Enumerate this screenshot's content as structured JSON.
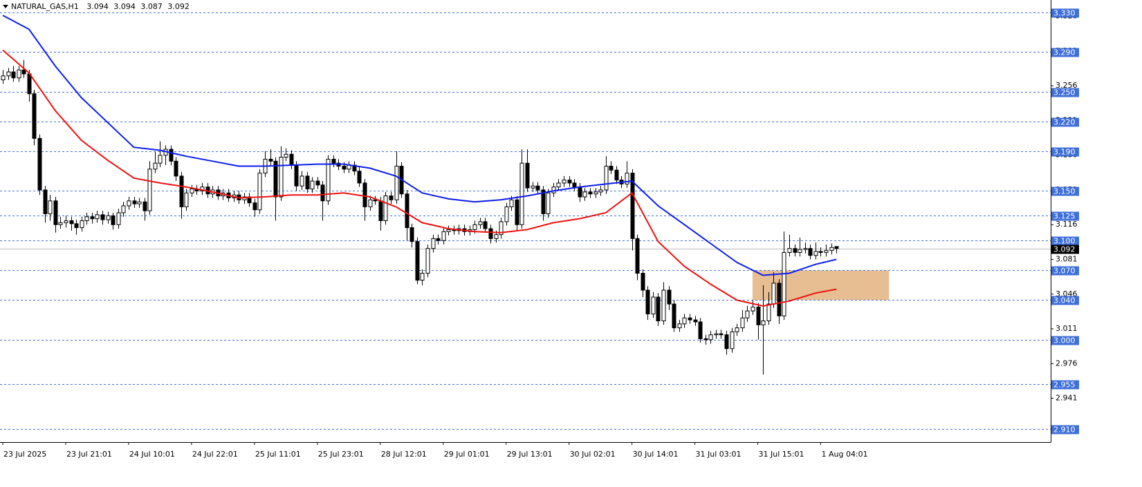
{
  "chart_data": {
    "type": "candlestick",
    "title": "NATURAL_GAS,H1",
    "up_color": "#ffffff",
    "down_color": "#000000",
    "candles": [
      [
        3.262,
        3.272,
        3.258,
        3.266
      ],
      [
        3.266,
        3.274,
        3.262,
        3.27
      ],
      [
        3.27,
        3.276,
        3.26,
        3.264
      ],
      [
        3.264,
        3.276,
        3.26,
        3.272
      ],
      [
        3.272,
        3.282,
        3.264,
        3.268
      ],
      [
        3.268,
        3.272,
        3.24,
        3.248
      ],
      [
        3.248,
        3.252,
        3.196,
        3.203
      ],
      [
        3.203,
        3.207,
        3.146,
        3.151
      ],
      [
        3.151,
        3.155,
        3.118,
        3.127
      ],
      [
        3.127,
        3.146,
        3.12,
        3.14
      ],
      [
        3.14,
        3.144,
        3.108,
        3.116
      ],
      [
        3.116,
        3.124,
        3.112,
        3.118
      ],
      [
        3.118,
        3.125,
        3.113,
        3.12
      ],
      [
        3.12,
        3.124,
        3.11,
        3.117
      ],
      [
        3.117,
        3.121,
        3.106,
        3.113
      ],
      [
        3.113,
        3.124,
        3.109,
        3.12
      ],
      [
        3.12,
        3.128,
        3.116,
        3.124
      ],
      [
        3.124,
        3.128,
        3.117,
        3.122
      ],
      [
        3.122,
        3.13,
        3.118,
        3.126
      ],
      [
        3.126,
        3.13,
        3.116,
        3.121
      ],
      [
        3.121,
        3.129,
        3.117,
        3.125
      ],
      [
        3.125,
        3.128,
        3.111,
        3.116
      ],
      [
        3.116,
        3.132,
        3.112,
        3.128
      ],
      [
        3.128,
        3.139,
        3.124,
        3.135
      ],
      [
        3.135,
        3.144,
        3.131,
        3.14
      ],
      [
        3.14,
        3.144,
        3.133,
        3.137
      ],
      [
        3.137,
        3.143,
        3.133,
        3.139
      ],
      [
        3.139,
        3.143,
        3.12,
        3.13
      ],
      [
        3.13,
        3.18,
        3.126,
        3.172
      ],
      [
        3.172,
        3.19,
        3.168,
        3.178
      ],
      [
        3.178,
        3.2,
        3.174,
        3.186
      ],
      [
        3.186,
        3.196,
        3.176,
        3.192
      ],
      [
        3.192,
        3.196,
        3.176,
        3.18
      ],
      [
        3.18,
        3.184,
        3.16,
        3.165
      ],
      [
        3.165,
        3.169,
        3.122,
        3.134
      ],
      [
        3.134,
        3.152,
        3.13,
        3.148
      ],
      [
        3.148,
        3.156,
        3.144,
        3.152
      ],
      [
        3.152,
        3.156,
        3.146,
        3.15
      ],
      [
        3.15,
        3.158,
        3.146,
        3.154
      ],
      [
        3.154,
        3.158,
        3.143,
        3.147
      ],
      [
        3.147,
        3.155,
        3.143,
        3.151
      ],
      [
        3.151,
        3.155,
        3.141,
        3.145
      ],
      [
        3.145,
        3.152,
        3.141,
        3.148
      ],
      [
        3.148,
        3.152,
        3.139,
        3.143
      ],
      [
        3.143,
        3.15,
        3.139,
        3.146
      ],
      [
        3.146,
        3.15,
        3.137,
        3.141
      ],
      [
        3.141,
        3.148,
        3.137,
        3.144
      ],
      [
        3.144,
        3.148,
        3.134,
        3.138
      ],
      [
        3.138,
        3.142,
        3.124,
        3.131
      ],
      [
        3.131,
        3.172,
        3.127,
        3.168
      ],
      [
        3.168,
        3.19,
        3.164,
        3.182
      ],
      [
        3.182,
        3.192,
        3.176,
        3.18
      ],
      [
        3.18,
        3.184,
        3.12,
        3.144
      ],
      [
        3.144,
        3.195,
        3.14,
        3.184
      ],
      [
        3.184,
        3.193,
        3.18,
        3.187
      ],
      [
        3.187,
        3.191,
        3.172,
        3.176
      ],
      [
        3.176,
        3.18,
        3.15,
        3.155
      ],
      [
        3.155,
        3.17,
        3.151,
        3.165
      ],
      [
        3.165,
        3.169,
        3.148,
        3.152
      ],
      [
        3.152,
        3.164,
        3.148,
        3.16
      ],
      [
        3.16,
        3.164,
        3.152,
        3.156
      ],
      [
        3.156,
        3.16,
        3.12,
        3.14
      ],
      [
        3.14,
        3.186,
        3.136,
        3.182
      ],
      [
        3.182,
        3.186,
        3.174,
        3.178
      ],
      [
        3.178,
        3.182,
        3.171,
        3.175
      ],
      [
        3.175,
        3.179,
        3.168,
        3.172
      ],
      [
        3.172,
        3.18,
        3.168,
        3.176
      ],
      [
        3.176,
        3.18,
        3.166,
        3.17
      ],
      [
        3.17,
        3.174,
        3.154,
        3.158
      ],
      [
        3.158,
        3.162,
        3.12,
        3.134
      ],
      [
        3.134,
        3.145,
        3.13,
        3.141
      ],
      [
        3.141,
        3.145,
        3.136,
        3.14
      ],
      [
        3.14,
        3.144,
        3.11,
        3.12
      ],
      [
        3.12,
        3.149,
        3.116,
        3.145
      ],
      [
        3.145,
        3.149,
        3.137,
        3.141
      ],
      [
        3.141,
        3.19,
        3.137,
        3.175
      ],
      [
        3.175,
        3.179,
        3.143,
        3.147
      ],
      [
        3.147,
        3.151,
        3.1,
        3.113
      ],
      [
        3.113,
        3.117,
        3.093,
        3.099
      ],
      [
        3.099,
        3.103,
        3.056,
        3.06
      ],
      [
        3.06,
        3.071,
        3.055,
        3.067
      ],
      [
        3.067,
        3.096,
        3.063,
        3.092
      ],
      [
        3.092,
        3.106,
        3.088,
        3.102
      ],
      [
        3.102,
        3.106,
        3.096,
        3.1
      ],
      [
        3.1,
        3.113,
        3.096,
        3.109
      ],
      [
        3.109,
        3.115,
        3.105,
        3.111
      ],
      [
        3.111,
        3.115,
        3.106,
        3.11
      ],
      [
        3.11,
        3.116,
        3.106,
        3.112
      ],
      [
        3.112,
        3.116,
        3.105,
        3.109
      ],
      [
        3.109,
        3.115,
        3.105,
        3.111
      ],
      [
        3.111,
        3.12,
        3.107,
        3.116
      ],
      [
        3.116,
        3.123,
        3.112,
        3.119
      ],
      [
        3.119,
        3.123,
        3.108,
        3.112
      ],
      [
        3.112,
        3.116,
        3.097,
        3.102
      ],
      [
        3.102,
        3.11,
        3.098,
        3.106
      ],
      [
        3.106,
        3.123,
        3.102,
        3.119
      ],
      [
        3.119,
        3.138,
        3.115,
        3.134
      ],
      [
        3.134,
        3.145,
        3.13,
        3.141
      ],
      [
        3.141,
        3.145,
        3.11,
        3.116
      ],
      [
        3.116,
        3.192,
        3.112,
        3.178
      ],
      [
        3.178,
        3.192,
        3.149,
        3.153
      ],
      [
        3.153,
        3.159,
        3.149,
        3.155
      ],
      [
        3.155,
        3.159,
        3.147,
        3.151
      ],
      [
        3.151,
        3.155,
        3.12,
        3.127
      ],
      [
        3.127,
        3.152,
        3.123,
        3.148
      ],
      [
        3.148,
        3.158,
        3.144,
        3.154
      ],
      [
        3.154,
        3.162,
        3.15,
        3.158
      ],
      [
        3.158,
        3.165,
        3.154,
        3.161
      ],
      [
        3.161,
        3.165,
        3.154,
        3.158
      ],
      [
        3.158,
        3.162,
        3.15,
        3.154
      ],
      [
        3.154,
        3.158,
        3.139,
        3.144
      ],
      [
        3.144,
        3.153,
        3.14,
        3.149
      ],
      [
        3.149,
        3.153,
        3.143,
        3.147
      ],
      [
        3.147,
        3.153,
        3.143,
        3.149
      ],
      [
        3.149,
        3.155,
        3.145,
        3.151
      ],
      [
        3.151,
        3.185,
        3.147,
        3.175
      ],
      [
        3.175,
        3.18,
        3.167,
        3.171
      ],
      [
        3.171,
        3.175,
        3.157,
        3.161
      ],
      [
        3.161,
        3.165,
        3.153,
        3.157
      ],
      [
        3.157,
        3.18,
        3.153,
        3.168
      ],
      [
        3.168,
        3.172,
        3.09,
        3.102
      ],
      [
        3.102,
        3.106,
        3.06,
        3.067
      ],
      [
        3.067,
        3.071,
        3.043,
        3.05
      ],
      [
        3.05,
        3.054,
        3.02,
        3.026
      ],
      [
        3.026,
        3.048,
        3.022,
        3.043
      ],
      [
        3.043,
        3.047,
        3.014,
        3.019
      ],
      [
        3.019,
        3.058,
        3.015,
        3.05
      ],
      [
        3.05,
        3.054,
        3.03,
        3.036
      ],
      [
        3.036,
        3.04,
        3.008,
        3.012
      ],
      [
        3.012,
        3.02,
        3.008,
        3.016
      ],
      [
        3.016,
        3.026,
        3.012,
        3.022
      ],
      [
        3.022,
        3.026,
        3.016,
        3.02
      ],
      [
        3.02,
        3.024,
        3.014,
        3.018
      ],
      [
        3.018,
        3.022,
        2.997,
        3.001
      ],
      [
        3.001,
        3.005,
        2.995,
        3.0
      ],
      [
        3.0,
        3.009,
        2.996,
        3.005
      ],
      [
        3.005,
        3.01,
        3.001,
        3.006
      ],
      [
        3.006,
        3.01,
        3.001,
        3.005
      ],
      [
        3.005,
        3.009,
        2.985,
        2.991
      ],
      [
        2.991,
        3.012,
        2.987,
        3.008
      ],
      [
        3.008,
        3.016,
        3.004,
        3.012
      ],
      [
        3.012,
        3.03,
        3.008,
        3.022
      ],
      [
        3.022,
        3.034,
        3.018,
        3.029
      ],
      [
        3.029,
        3.04,
        3.025,
        3.033
      ],
      [
        3.033,
        3.037,
        3.0,
        3.015
      ],
      [
        3.015,
        3.055,
        2.965,
        3.019
      ],
      [
        3.019,
        3.048,
        3.015,
        3.036
      ],
      [
        3.036,
        3.068,
        3.032,
        3.057
      ],
      [
        3.057,
        3.061,
        3.016,
        3.024
      ],
      [
        3.024,
        3.109,
        3.02,
        3.088
      ],
      [
        3.088,
        3.106,
        3.084,
        3.092
      ],
      [
        3.092,
        3.096,
        3.084,
        3.088
      ],
      [
        3.088,
        3.103,
        3.084,
        3.091
      ],
      [
        3.091,
        3.098,
        3.087,
        3.092
      ],
      [
        3.092,
        3.096,
        3.081,
        3.085
      ],
      [
        3.085,
        3.098,
        3.081,
        3.089
      ],
      [
        3.089,
        3.093,
        3.084,
        3.088
      ],
      [
        3.088,
        3.096,
        3.084,
        3.09
      ],
      [
        3.09,
        3.097,
        3.086,
        3.093
      ],
      [
        3.094,
        3.094,
        3.087,
        3.092
      ]
    ],
    "ma": [
      {
        "color": "#0a1cf0",
        "x": [
          0,
          5,
          10,
          15,
          20,
          25,
          30,
          35,
          40,
          45,
          50,
          55,
          60,
          65,
          70,
          75,
          80,
          85,
          90,
          95,
          100,
          105,
          110,
          115,
          120,
          125,
          130,
          135,
          140,
          145,
          150,
          155,
          159
        ],
        "values": [
          3.327,
          3.313,
          3.276,
          3.244,
          3.219,
          3.194,
          3.191,
          3.185,
          3.18,
          3.175,
          3.175,
          3.176,
          3.177,
          3.177,
          3.173,
          3.165,
          3.148,
          3.142,
          3.139,
          3.141,
          3.145,
          3.15,
          3.154,
          3.157,
          3.16,
          3.135,
          3.116,
          3.097,
          3.078,
          3.065,
          3.067,
          3.076,
          3.081
        ]
      },
      {
        "color": "#f01010",
        "x": [
          0,
          5,
          10,
          15,
          20,
          25,
          30,
          35,
          40,
          45,
          50,
          55,
          60,
          65,
          70,
          75,
          80,
          85,
          90,
          95,
          100,
          105,
          110,
          115,
          120,
          125,
          130,
          135,
          140,
          145,
          150,
          155,
          159
        ],
        "values": [
          3.292,
          3.269,
          3.231,
          3.201,
          3.181,
          3.163,
          3.158,
          3.154,
          3.149,
          3.143,
          3.144,
          3.146,
          3.146,
          3.148,
          3.144,
          3.134,
          3.118,
          3.112,
          3.109,
          3.108,
          3.111,
          3.118,
          3.122,
          3.128,
          3.148,
          3.099,
          3.074,
          3.056,
          3.04,
          3.034,
          3.039,
          3.047,
          3.051
        ]
      }
    ],
    "levels": [
      {
        "value": 3.33,
        "label": "3.330"
      },
      {
        "value": 3.29,
        "label": "3.290"
      },
      {
        "value": 3.25,
        "label": "3.250"
      },
      {
        "value": 3.22,
        "label": "3.220"
      },
      {
        "value": 3.19,
        "label": "3.190"
      },
      {
        "value": 3.15,
        "label": "3.150"
      },
      3.125,
      {
        "value": 3.1,
        "label": "3.100"
      },
      {
        "value": 3.07,
        "label": "3.070"
      },
      {
        "value": 3.04,
        "label": "3.040"
      },
      {
        "value": 3,
        "label": "3.000"
      },
      2.955,
      {
        "value": 2.91,
        "label": "2.910"
      }
    ],
    "level_color": "#3f6fd8",
    "zone": {
      "color": "#e3b27f",
      "x": [
        143,
        169
      ],
      "y": [
        3.04,
        3.07
      ]
    },
    "xlim": [
      -0.53,
      199.87
    ],
    "ylim": [
      2.8968,
      3.3425
    ],
    "yticks": [
      2.941,
      2.976,
      3.011,
      3.046,
      3.081,
      3.116,
      3.151,
      3.186,
      3.221,
      3.256,
      3.291,
      3.326
    ],
    "xticks": [
      {
        "value": 0,
        "label": "23 Jul 2025"
      },
      {
        "value": 12,
        "label": "23 Jul 21:01"
      },
      {
        "value": 24,
        "label": "24 Jul 10:01"
      },
      {
        "value": 36,
        "label": "24 Jul 22:01"
      },
      {
        "value": 48,
        "label": "25 Jul 11:01"
      },
      {
        "value": 60,
        "label": "25 Jul 23:01"
      },
      {
        "value": 72,
        "label": "28 Jul 12:01"
      },
      {
        "value": 84,
        "label": "29 Jul 01:01"
      },
      {
        "value": 96,
        "label": "29 Jul 13:01"
      },
      {
        "value": 108,
        "label": "30 Jul 02:01"
      },
      {
        "value": 120,
        "label": "30 Jul 14:01"
      },
      {
        "value": 132,
        "label": "31 Jul 03:01"
      },
      {
        "value": 144,
        "label": "31 Jul 15:01"
      },
      {
        "value": 156,
        "label": "1 Aug 04:01"
      }
    ]
  }
}
